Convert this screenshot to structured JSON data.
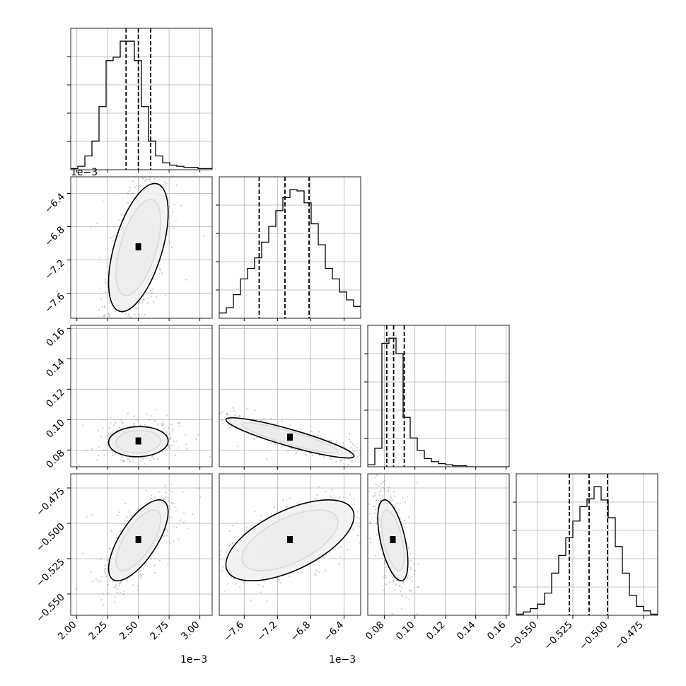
{
  "chart_data": {
    "type": "corner",
    "parameters": [
      {
        "id": "p0",
        "range": [
          0.00195,
          0.0031
        ],
        "ticks": [
          0.002,
          0.00225,
          0.0025,
          0.00275,
          0.003
        ],
        "tick_labels": [
          "2.00",
          "2.25",
          "2.50",
          "2.75",
          "3.00"
        ],
        "offset_label": "1e−3",
        "quantiles": [
          0.0024,
          0.0025,
          0.0026
        ]
      },
      {
        "id": "p1",
        "range": [
          -0.0079,
          -0.0062
        ],
        "ticks": [
          -0.0076,
          -0.0072,
          -0.0068,
          -0.0064
        ],
        "tick_labels": [
          "−7.6",
          "−7.2",
          "−6.8",
          "−6.4"
        ],
        "offset_label": "1e−3",
        "quantiles": [
          -0.00742,
          -0.00711,
          -0.00682
        ]
      },
      {
        "id": "p2",
        "range": [
          0.069,
          0.162
        ],
        "ticks": [
          0.08,
          0.1,
          0.12,
          0.14,
          0.16
        ],
        "tick_labels": [
          "0.08",
          "0.10",
          "0.12",
          "0.14",
          "0.16"
        ],
        "offset_label": "",
        "quantiles": [
          0.0815,
          0.086,
          0.093
        ]
      },
      {
        "id": "p3",
        "range": [
          -0.565,
          -0.465
        ],
        "ticks": [
          -0.55,
          -0.525,
          -0.5,
          -0.475
        ],
        "tick_labels": [
          "−0.550",
          "−0.525",
          "−0.500",
          "−0.475"
        ],
        "offset_label": "",
        "quantiles": [
          -0.5275,
          -0.5135,
          -0.5005
        ]
      }
    ],
    "histograms": [
      {
        "param": "p0",
        "counts": [
          1,
          3,
          12,
          25,
          55,
          95,
          98,
          112,
          112,
          95,
          55,
          25,
          12,
          6,
          4,
          3,
          2,
          2,
          1,
          1
        ]
      },
      {
        "param": "p1",
        "counts": [
          4,
          8,
          18,
          30,
          38,
          46,
          58,
          70,
          82,
          92,
          98,
          97,
          88,
          72,
          56,
          38,
          30,
          20,
          14,
          9
        ]
      },
      {
        "param": "p2",
        "counts": [
          2,
          18,
          120,
          125,
          110,
          48,
          28,
          16,
          8,
          5,
          3,
          2,
          1,
          1,
          0,
          0,
          0,
          0,
          0,
          0
        ]
      },
      {
        "param": "p3",
        "counts": [
          1,
          3,
          6,
          10,
          20,
          38,
          54,
          70,
          85,
          98,
          105,
          116,
          104,
          88,
          62,
          38,
          18,
          8,
          4,
          1
        ]
      }
    ],
    "pairs": [
      {
        "x": "p0",
        "y": "p1",
        "mean": [
          0.0025,
          -0.00705
        ],
        "sd": [
          0.00011,
          0.00035
        ],
        "rho": 0.55
      },
      {
        "x": "p0",
        "y": "p2",
        "mean": [
          0.0025,
          0.0855
        ],
        "sd": [
          0.00011,
          0.0045
        ],
        "rho": 0.05
      },
      {
        "x": "p1",
        "y": "p2",
        "mean": [
          -0.00705,
          0.088
        ],
        "sd": [
          0.00035,
          0.006
        ],
        "rho": -0.9
      },
      {
        "x": "p0",
        "y": "p3",
        "mean": [
          0.0025,
          -0.512
        ],
        "sd": [
          0.00011,
          0.013
        ],
        "rho": 0.7
      },
      {
        "x": "p1",
        "y": "p3",
        "mean": [
          -0.00705,
          -0.512
        ],
        "sd": [
          0.00035,
          0.013
        ],
        "rho": 0.6
      },
      {
        "x": "p2",
        "y": "p3",
        "mean": [
          0.0855,
          -0.512
        ],
        "sd": [
          0.0045,
          0.013
        ],
        "rho": -0.55
      }
    ],
    "contour_levels": [
      0.5,
      1.0,
      1.5,
      2.0
    ],
    "grid": true
  },
  "labels": {
    "offset_x0": "1e−3",
    "offset_x1": "1e−3",
    "offset_y1": "1e−3"
  }
}
